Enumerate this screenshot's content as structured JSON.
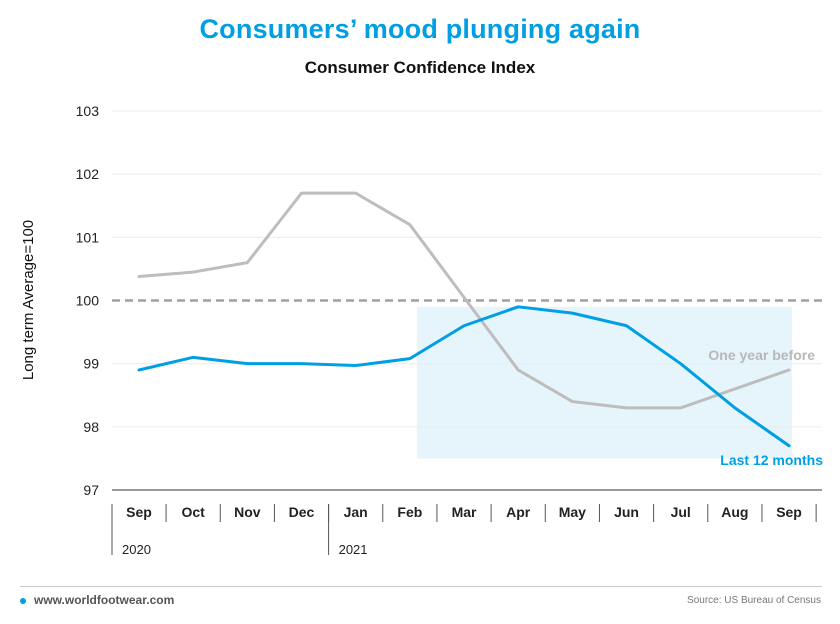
{
  "header": {
    "title": "Consumers’ mood plunging again",
    "subtitle": "Consumer Confidence Index"
  },
  "footer": {
    "website": "www.worldfootwear.com",
    "source": "Source: US Bureau of Census"
  },
  "colors": {
    "accent": "#009fe3",
    "prior_line": "#bdbdbd",
    "reference_line": "#a0a0a0",
    "highlight_fill": "#e6f4fc",
    "prior_label": "#b8b8b8"
  },
  "chart_data": {
    "type": "line",
    "title": "Consumer Confidence Index",
    "ylabel": "Long term Average=100",
    "ylim": [
      97,
      103
    ],
    "yticks": [
      "97",
      "98",
      "99",
      "100",
      "101",
      "102",
      "103"
    ],
    "categories": [
      "Sep",
      "Oct",
      "Nov",
      "Dec",
      "Jan",
      "Feb",
      "Mar",
      "Apr",
      "May",
      "Jun",
      "Jul",
      "Aug",
      "Sep"
    ],
    "year_labels": [
      {
        "label": "2020",
        "start_index": 0
      },
      {
        "label": "2021",
        "start_index": 4
      }
    ],
    "reference_line": 100,
    "highlight_range": {
      "x_from": "Feb",
      "x_to": "Sep",
      "y_from": 97.5,
      "y_to": 99.9
    },
    "series": [
      {
        "name": "Last 12 months",
        "values": [
          98.9,
          99.1,
          99.0,
          99.0,
          98.97,
          99.08,
          99.6,
          99.9,
          99.8,
          99.6,
          99.0,
          98.3,
          97.7
        ]
      },
      {
        "name": "One year before",
        "values": [
          100.38,
          100.45,
          100.6,
          101.7,
          101.7,
          101.2,
          100.05,
          98.9,
          98.4,
          98.3,
          98.3,
          98.6,
          98.9
        ]
      }
    ]
  }
}
